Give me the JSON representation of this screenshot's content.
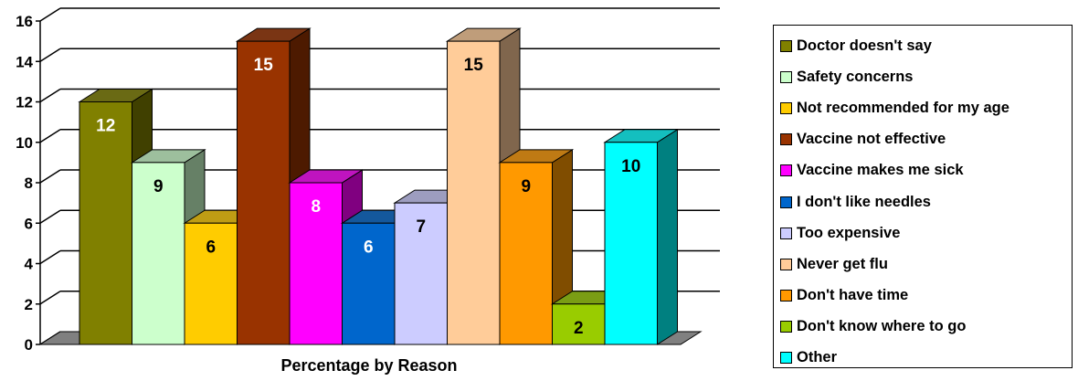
{
  "chart_data": {
    "type": "bar",
    "title": "",
    "xlabel": "Percentage by Reason",
    "ylabel": "",
    "ylim": [
      0,
      16
    ],
    "yticks": [
      0,
      2,
      4,
      6,
      8,
      10,
      12,
      14,
      16
    ],
    "grid": true,
    "legend_position": "right",
    "series": [
      {
        "name": "Doctor doesn't say",
        "value": 12,
        "color": "#808000"
      },
      {
        "name": "Safety concerns",
        "value": 9,
        "color": "#ccffcc"
      },
      {
        "name": "Not recommended for my age",
        "value": 6,
        "color": "#ffcc00"
      },
      {
        "name": "Vaccine not effective",
        "value": 15,
        "color": "#993300"
      },
      {
        "name": "Vaccine makes me sick",
        "value": 8,
        "color": "#ff00ff"
      },
      {
        "name": "I don't like needles",
        "value": 6,
        "color": "#0066cc"
      },
      {
        "name": "Too expensive",
        "value": 7,
        "color": "#ccccff"
      },
      {
        "name": "Never get flu",
        "value": 15,
        "color": "#ffcc99"
      },
      {
        "name": "Don't have time",
        "value": 9,
        "color": "#ff9900"
      },
      {
        "name": "Don't know where to go",
        "value": 2,
        "color": "#99cc00"
      },
      {
        "name": "Other",
        "value": 10,
        "color": "#00ffff"
      }
    ],
    "data_label_colors": [
      "#ffffff",
      "#000000",
      "#000000",
      "#ffffff",
      "#ffffff",
      "#ffffff",
      "#000000",
      "#000000",
      "#000000",
      "#000000",
      "#000000"
    ]
  }
}
